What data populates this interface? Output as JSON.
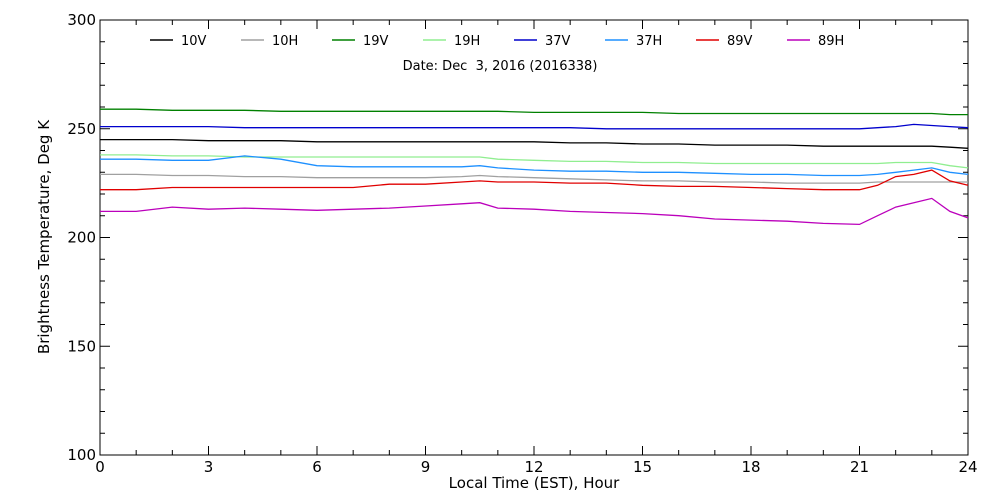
{
  "chart_data": {
    "type": "line",
    "title": "",
    "annotation": "Date: Dec  3, 2016 (2016338)",
    "xlabel": "Local Time (EST), Hour",
    "ylabel": "Brightness Temperature, Deg K",
    "xlim": [
      0,
      24
    ],
    "ylim": [
      100,
      300
    ],
    "xticks": [
      0,
      3,
      6,
      9,
      12,
      15,
      18,
      21,
      24
    ],
    "yticks": [
      100,
      150,
      200,
      250,
      300
    ],
    "grid": false,
    "legend_position": "top",
    "x": [
      0,
      1,
      2,
      3,
      4,
      5,
      6,
      7,
      8,
      9,
      10,
      10.5,
      11,
      12,
      13,
      14,
      15,
      16,
      17,
      18,
      19,
      20,
      21,
      21.5,
      22,
      22.5,
      23,
      23.5,
      24
    ],
    "series": [
      {
        "name": "10V",
        "color": "#000000",
        "values": [
          245,
          245,
          245,
          244.5,
          244.5,
          244.5,
          244,
          244,
          244,
          244,
          244,
          244,
          244,
          244,
          243.5,
          243.5,
          243,
          243,
          242.5,
          242.5,
          242.5,
          242,
          242,
          242,
          242,
          242,
          242,
          241.5,
          241
        ]
      },
      {
        "name": "10H",
        "color": "#a0a0a0",
        "values": [
          229,
          229,
          228.5,
          228.5,
          228,
          228,
          227.5,
          227.5,
          227.5,
          227.5,
          228,
          228.5,
          228,
          227.5,
          227,
          226.5,
          226,
          226,
          225.5,
          225.5,
          225,
          225,
          225,
          225.5,
          225.5,
          225.5,
          225.5,
          225.5,
          225.5
        ]
      },
      {
        "name": "19V",
        "color": "#008000",
        "values": [
          259,
          259,
          258.5,
          258.5,
          258.5,
          258,
          258,
          258,
          258,
          258,
          258,
          258,
          258,
          257.5,
          257.5,
          257.5,
          257.5,
          257,
          257,
          257,
          257,
          257,
          257,
          257,
          257,
          257,
          257,
          256.5,
          256.5
        ]
      },
      {
        "name": "19H",
        "color": "#90ee90",
        "values": [
          238,
          238,
          237.5,
          237.5,
          237,
          237,
          237,
          237,
          237,
          237,
          237,
          237,
          236,
          235.5,
          235,
          235,
          234.5,
          234.5,
          234,
          234,
          234,
          234,
          234,
          234,
          234.5,
          234.5,
          234.5,
          233,
          232
        ]
      },
      {
        "name": "37V",
        "color": "#0000cc",
        "values": [
          251,
          251,
          251,
          251,
          250.5,
          250.5,
          250.5,
          250.5,
          250.5,
          250.5,
          250.5,
          250.5,
          250.5,
          250.5,
          250.5,
          250,
          250,
          250,
          250,
          250,
          250,
          250,
          250,
          250.5,
          251,
          252,
          251.5,
          251,
          250.5
        ]
      },
      {
        "name": "37H",
        "color": "#1e90ff",
        "values": [
          236,
          236,
          235.5,
          235.5,
          237.5,
          236,
          233,
          232.5,
          232.5,
          232.5,
          232.5,
          233,
          232,
          231,
          230.5,
          230.5,
          230,
          230,
          229.5,
          229,
          229,
          228.5,
          228.5,
          229,
          230,
          231,
          232,
          230,
          229
        ]
      },
      {
        "name": "89V",
        "color": "#e00000",
        "values": [
          222,
          222,
          223,
          223,
          223,
          223,
          223,
          223,
          224.5,
          224.5,
          225.5,
          226,
          225.5,
          225.5,
          225,
          225,
          224,
          223.5,
          223.5,
          223,
          222.5,
          222,
          222,
          224,
          228,
          229,
          231,
          226,
          224
        ]
      },
      {
        "name": "89H",
        "color": "#bb00bb",
        "values": [
          212,
          212,
          214,
          213,
          213.5,
          213,
          212.5,
          213,
          213.5,
          214.5,
          215.5,
          216,
          213.5,
          213,
          212,
          211.5,
          211,
          210,
          208.5,
          208,
          207.5,
          206.5,
          206,
          210,
          214,
          216,
          218,
          212,
          209
        ]
      }
    ]
  }
}
